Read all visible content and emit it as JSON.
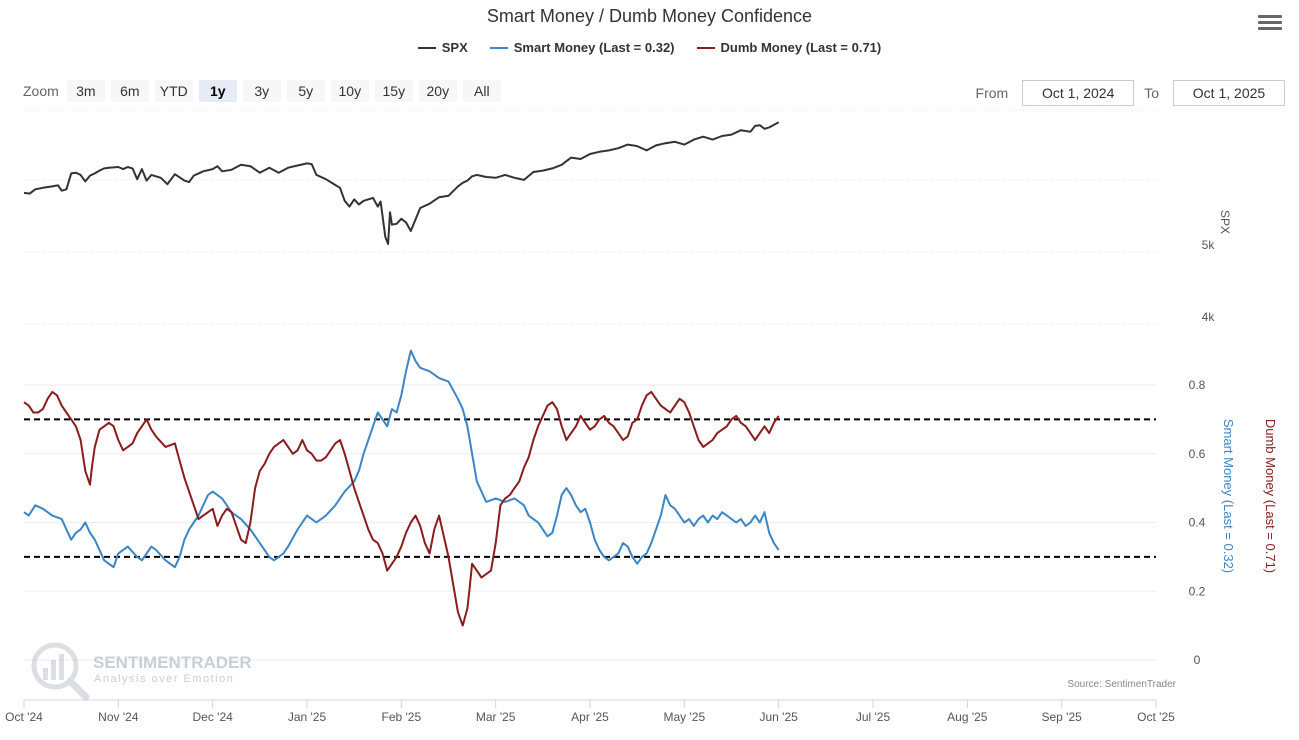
{
  "chart_data": {
    "type": "line",
    "title": "Smart Money / Dumb Money Confidence",
    "legend": {
      "placement": "top-center"
    },
    "series": [
      {
        "name": "SPX",
        "color": "#333333",
        "axis": "spx"
      },
      {
        "name": "Smart Money (Last = 0.32)",
        "color": "#3a86c8",
        "axis": "confidence"
      },
      {
        "name": "Dumb Money (Last = 0.71)",
        "color": "#8b1c1c",
        "axis": "confidence"
      }
    ],
    "x_ticks": [
      "Oct '24",
      "Nov '24",
      "Dec '24",
      "Jan '25",
      "Feb '25",
      "Mar '25",
      "Apr '25",
      "May '25",
      "Jun '25",
      "Jul '25",
      "Aug '25",
      "Sep '25",
      "Oct '25"
    ],
    "spx_axis": {
      "label": "SPX",
      "ticks": [
        "4k",
        "5k"
      ]
    },
    "confidence_axis": {
      "ticks": [
        "0",
        "0.2",
        "0.4",
        "0.6",
        "0.8"
      ],
      "ylim": [
        0,
        0.8
      ],
      "label_smart": "Smart Money (Last = 0.32)",
      "label_dumb": "Dumb Money (Last = 0.71)"
    },
    "reference_lines": [
      0.7,
      0.3
    ],
    "spx_points": [
      [
        0,
        5710
      ],
      [
        0.06,
        5700
      ],
      [
        0.12,
        5760
      ],
      [
        0.2,
        5780
      ],
      [
        0.3,
        5800
      ],
      [
        0.36,
        5815
      ],
      [
        0.4,
        5740
      ],
      [
        0.45,
        5760
      ],
      [
        0.5,
        5980
      ],
      [
        0.55,
        5990
      ],
      [
        0.6,
        5960
      ],
      [
        0.65,
        5870
      ],
      [
        0.7,
        5950
      ],
      [
        0.75,
        5980
      ],
      [
        0.8,
        6020
      ],
      [
        0.85,
        6050
      ],
      [
        0.9,
        6060
      ],
      [
        1.0,
        6070
      ],
      [
        1.05,
        6040
      ],
      [
        1.1,
        6070
      ],
      [
        1.15,
        6050
      ],
      [
        1.2,
        5900
      ],
      [
        1.25,
        6040
      ],
      [
        1.3,
        5880
      ],
      [
        1.35,
        5960
      ],
      [
        1.45,
        5920
      ],
      [
        1.52,
        5830
      ],
      [
        1.6,
        5970
      ],
      [
        1.7,
        5880
      ],
      [
        1.75,
        5860
      ],
      [
        1.8,
        5950
      ],
      [
        1.9,
        6010
      ],
      [
        2.0,
        6040
      ],
      [
        2.05,
        6080
      ],
      [
        2.1,
        6010
      ],
      [
        2.2,
        6030
      ],
      [
        2.3,
        6100
      ],
      [
        2.4,
        6080
      ],
      [
        2.5,
        5990
      ],
      [
        2.6,
        6060
      ],
      [
        2.7,
        5990
      ],
      [
        2.8,
        6060
      ],
      [
        2.9,
        6090
      ],
      [
        3.0,
        6120
      ],
      [
        3.05,
        6110
      ],
      [
        3.1,
        5960
      ],
      [
        3.2,
        5900
      ],
      [
        3.3,
        5820
      ],
      [
        3.35,
        5780
      ],
      [
        3.4,
        5600
      ],
      [
        3.45,
        5520
      ],
      [
        3.5,
        5620
      ],
      [
        3.55,
        5550
      ],
      [
        3.6,
        5600
      ],
      [
        3.7,
        5640
      ],
      [
        3.75,
        5520
      ],
      [
        3.78,
        5590
      ],
      [
        3.83,
        5100
      ],
      [
        3.86,
        5000
      ],
      [
        3.88,
        5440
      ],
      [
        3.9,
        5270
      ],
      [
        3.95,
        5280
      ],
      [
        4.0,
        5350
      ],
      [
        4.05,
        5300
      ],
      [
        4.1,
        5180
      ],
      [
        4.2,
        5500
      ],
      [
        4.3,
        5560
      ],
      [
        4.4,
        5650
      ],
      [
        4.5,
        5670
      ],
      [
        4.6,
        5800
      ],
      [
        4.65,
        5850
      ],
      [
        4.7,
        5880
      ],
      [
        4.75,
        5940
      ],
      [
        4.8,
        5960
      ],
      [
        4.9,
        5930
      ],
      [
        5.0,
        5920
      ],
      [
        5.1,
        5960
      ],
      [
        5.2,
        5920
      ],
      [
        5.3,
        5890
      ],
      [
        5.4,
        6000
      ],
      [
        5.5,
        6020
      ],
      [
        5.6,
        6050
      ],
      [
        5.7,
        6100
      ],
      [
        5.8,
        6200
      ],
      [
        5.9,
        6180
      ],
      [
        6.0,
        6250
      ],
      [
        6.1,
        6280
      ],
      [
        6.2,
        6300
      ],
      [
        6.3,
        6330
      ],
      [
        6.4,
        6380
      ],
      [
        6.5,
        6360
      ],
      [
        6.6,
        6300
      ],
      [
        6.7,
        6370
      ],
      [
        6.8,
        6400
      ],
      [
        6.9,
        6420
      ],
      [
        7.0,
        6380
      ],
      [
        7.1,
        6450
      ],
      [
        7.2,
        6490
      ],
      [
        7.3,
        6450
      ],
      [
        7.4,
        6500
      ],
      [
        7.5,
        6520
      ],
      [
        7.6,
        6580
      ],
      [
        7.7,
        6560
      ],
      [
        7.75,
        6640
      ],
      [
        7.8,
        6650
      ],
      [
        7.85,
        6600
      ],
      [
        7.9,
        6620
      ],
      [
        8.0,
        6690
      ]
    ],
    "smart_points": [
      [
        0,
        0.43
      ],
      [
        0.05,
        0.42
      ],
      [
        0.12,
        0.45
      ],
      [
        0.2,
        0.44
      ],
      [
        0.3,
        0.42
      ],
      [
        0.4,
        0.41
      ],
      [
        0.45,
        0.38
      ],
      [
        0.5,
        0.35
      ],
      [
        0.55,
        0.37
      ],
      [
        0.6,
        0.38
      ],
      [
        0.65,
        0.4
      ],
      [
        0.7,
        0.37
      ],
      [
        0.75,
        0.35
      ],
      [
        0.8,
        0.32
      ],
      [
        0.85,
        0.29
      ],
      [
        0.9,
        0.28
      ],
      [
        0.95,
        0.27
      ],
      [
        1.0,
        0.31
      ],
      [
        1.05,
        0.32
      ],
      [
        1.1,
        0.33
      ],
      [
        1.2,
        0.3
      ],
      [
        1.25,
        0.29
      ],
      [
        1.3,
        0.31
      ],
      [
        1.35,
        0.33
      ],
      [
        1.4,
        0.32
      ],
      [
        1.5,
        0.29
      ],
      [
        1.6,
        0.27
      ],
      [
        1.65,
        0.3
      ],
      [
        1.7,
        0.35
      ],
      [
        1.75,
        0.38
      ],
      [
        1.8,
        0.4
      ],
      [
        1.85,
        0.42
      ],
      [
        1.9,
        0.45
      ],
      [
        1.95,
        0.48
      ],
      [
        2.0,
        0.49
      ],
      [
        2.1,
        0.47
      ],
      [
        2.2,
        0.43
      ],
      [
        2.3,
        0.41
      ],
      [
        2.4,
        0.38
      ],
      [
        2.5,
        0.34
      ],
      [
        2.6,
        0.3
      ],
      [
        2.65,
        0.29
      ],
      [
        2.7,
        0.3
      ],
      [
        2.75,
        0.31
      ],
      [
        2.8,
        0.33
      ],
      [
        2.9,
        0.38
      ],
      [
        3.0,
        0.42
      ],
      [
        3.1,
        0.4
      ],
      [
        3.2,
        0.42
      ],
      [
        3.3,
        0.45
      ],
      [
        3.4,
        0.49
      ],
      [
        3.5,
        0.52
      ],
      [
        3.55,
        0.55
      ],
      [
        3.6,
        0.6
      ],
      [
        3.7,
        0.68
      ],
      [
        3.75,
        0.72
      ],
      [
        3.8,
        0.7
      ],
      [
        3.85,
        0.68
      ],
      [
        3.9,
        0.73
      ],
      [
        3.95,
        0.72
      ],
      [
        4.0,
        0.77
      ],
      [
        4.05,
        0.84
      ],
      [
        4.1,
        0.9
      ],
      [
        4.15,
        0.87
      ],
      [
        4.2,
        0.85
      ],
      [
        4.3,
        0.84
      ],
      [
        4.4,
        0.82
      ],
      [
        4.5,
        0.81
      ],
      [
        4.6,
        0.76
      ],
      [
        4.65,
        0.73
      ],
      [
        4.7,
        0.68
      ],
      [
        4.75,
        0.6
      ],
      [
        4.8,
        0.52
      ],
      [
        4.85,
        0.49
      ],
      [
        4.9,
        0.46
      ],
      [
        5.0,
        0.47
      ],
      [
        5.1,
        0.46
      ],
      [
        5.2,
        0.47
      ],
      [
        5.3,
        0.45
      ],
      [
        5.35,
        0.42
      ],
      [
        5.4,
        0.41
      ],
      [
        5.45,
        0.4
      ],
      [
        5.5,
        0.38
      ],
      [
        5.55,
        0.36
      ],
      [
        5.6,
        0.37
      ],
      [
        5.65,
        0.42
      ],
      [
        5.7,
        0.48
      ],
      [
        5.75,
        0.5
      ],
      [
        5.8,
        0.48
      ],
      [
        5.85,
        0.45
      ],
      [
        5.9,
        0.43
      ],
      [
        5.95,
        0.44
      ],
      [
        6.0,
        0.4
      ],
      [
        6.05,
        0.35
      ],
      [
        6.1,
        0.32
      ],
      [
        6.15,
        0.3
      ],
      [
        6.2,
        0.29
      ],
      [
        6.25,
        0.3
      ],
      [
        6.3,
        0.31
      ],
      [
        6.35,
        0.34
      ],
      [
        6.4,
        0.33
      ],
      [
        6.45,
        0.3
      ],
      [
        6.5,
        0.28
      ],
      [
        6.55,
        0.3
      ],
      [
        6.6,
        0.31
      ],
      [
        6.65,
        0.34
      ],
      [
        6.7,
        0.38
      ],
      [
        6.75,
        0.42
      ],
      [
        6.8,
        0.48
      ],
      [
        6.85,
        0.45
      ],
      [
        6.9,
        0.44
      ],
      [
        6.95,
        0.42
      ],
      [
        7.0,
        0.4
      ],
      [
        7.05,
        0.41
      ],
      [
        7.1,
        0.39
      ],
      [
        7.15,
        0.41
      ],
      [
        7.2,
        0.42
      ],
      [
        7.25,
        0.4
      ],
      [
        7.3,
        0.42
      ],
      [
        7.35,
        0.41
      ],
      [
        7.4,
        0.43
      ],
      [
        7.45,
        0.42
      ],
      [
        7.5,
        0.41
      ],
      [
        7.55,
        0.4
      ],
      [
        7.6,
        0.41
      ],
      [
        7.65,
        0.39
      ],
      [
        7.7,
        0.4
      ],
      [
        7.75,
        0.42
      ],
      [
        7.8,
        0.4
      ],
      [
        7.85,
        0.43
      ],
      [
        7.9,
        0.37
      ],
      [
        7.95,
        0.34
      ],
      [
        8.0,
        0.32
      ]
    ],
    "dumb_points": [
      [
        0,
        0.75
      ],
      [
        0.05,
        0.74
      ],
      [
        0.1,
        0.72
      ],
      [
        0.15,
        0.72
      ],
      [
        0.2,
        0.73
      ],
      [
        0.25,
        0.76
      ],
      [
        0.3,
        0.78
      ],
      [
        0.35,
        0.77
      ],
      [
        0.4,
        0.74
      ],
      [
        0.45,
        0.72
      ],
      [
        0.5,
        0.7
      ],
      [
        0.55,
        0.68
      ],
      [
        0.6,
        0.64
      ],
      [
        0.65,
        0.55
      ],
      [
        0.7,
        0.51
      ],
      [
        0.72,
        0.56
      ],
      [
        0.75,
        0.62
      ],
      [
        0.8,
        0.67
      ],
      [
        0.85,
        0.68
      ],
      [
        0.9,
        0.69
      ],
      [
        0.95,
        0.68
      ],
      [
        1.0,
        0.64
      ],
      [
        1.05,
        0.61
      ],
      [
        1.1,
        0.62
      ],
      [
        1.15,
        0.63
      ],
      [
        1.2,
        0.66
      ],
      [
        1.25,
        0.68
      ],
      [
        1.3,
        0.7
      ],
      [
        1.35,
        0.67
      ],
      [
        1.4,
        0.65
      ],
      [
        1.5,
        0.62
      ],
      [
        1.6,
        0.63
      ],
      [
        1.65,
        0.58
      ],
      [
        1.7,
        0.53
      ],
      [
        1.75,
        0.49
      ],
      [
        1.8,
        0.45
      ],
      [
        1.85,
        0.41
      ],
      [
        1.9,
        0.42
      ],
      [
        1.95,
        0.43
      ],
      [
        2.0,
        0.44
      ],
      [
        2.05,
        0.39
      ],
      [
        2.1,
        0.42
      ],
      [
        2.15,
        0.44
      ],
      [
        2.2,
        0.43
      ],
      [
        2.25,
        0.39
      ],
      [
        2.3,
        0.35
      ],
      [
        2.35,
        0.34
      ],
      [
        2.4,
        0.4
      ],
      [
        2.45,
        0.5
      ],
      [
        2.5,
        0.55
      ],
      [
        2.55,
        0.57
      ],
      [
        2.6,
        0.6
      ],
      [
        2.65,
        0.62
      ],
      [
        2.7,
        0.63
      ],
      [
        2.75,
        0.64
      ],
      [
        2.8,
        0.62
      ],
      [
        2.85,
        0.6
      ],
      [
        2.9,
        0.61
      ],
      [
        2.95,
        0.64
      ],
      [
        3.0,
        0.61
      ],
      [
        3.05,
        0.6
      ],
      [
        3.1,
        0.58
      ],
      [
        3.15,
        0.58
      ],
      [
        3.2,
        0.59
      ],
      [
        3.25,
        0.61
      ],
      [
        3.3,
        0.63
      ],
      [
        3.35,
        0.64
      ],
      [
        3.4,
        0.6
      ],
      [
        3.45,
        0.55
      ],
      [
        3.5,
        0.5
      ],
      [
        3.55,
        0.46
      ],
      [
        3.6,
        0.42
      ],
      [
        3.65,
        0.38
      ],
      [
        3.7,
        0.35
      ],
      [
        3.75,
        0.34
      ],
      [
        3.8,
        0.31
      ],
      [
        3.85,
        0.26
      ],
      [
        3.9,
        0.28
      ],
      [
        3.95,
        0.3
      ],
      [
        4.0,
        0.33
      ],
      [
        4.05,
        0.37
      ],
      [
        4.1,
        0.4
      ],
      [
        4.15,
        0.42
      ],
      [
        4.2,
        0.39
      ],
      [
        4.25,
        0.34
      ],
      [
        4.3,
        0.31
      ],
      [
        4.35,
        0.38
      ],
      [
        4.4,
        0.42
      ],
      [
        4.45,
        0.36
      ],
      [
        4.5,
        0.3
      ],
      [
        4.55,
        0.22
      ],
      [
        4.6,
        0.14
      ],
      [
        4.65,
        0.1
      ],
      [
        4.7,
        0.15
      ],
      [
        4.72,
        0.2
      ],
      [
        4.75,
        0.28
      ],
      [
        4.8,
        0.26
      ],
      [
        4.85,
        0.24
      ],
      [
        4.9,
        0.25
      ],
      [
        4.95,
        0.26
      ],
      [
        5.0,
        0.34
      ],
      [
        5.05,
        0.45
      ],
      [
        5.1,
        0.47
      ],
      [
        5.15,
        0.48
      ],
      [
        5.2,
        0.5
      ],
      [
        5.25,
        0.52
      ],
      [
        5.3,
        0.56
      ],
      [
        5.35,
        0.59
      ],
      [
        5.4,
        0.64
      ],
      [
        5.45,
        0.68
      ],
      [
        5.5,
        0.71
      ],
      [
        5.55,
        0.74
      ],
      [
        5.6,
        0.75
      ],
      [
        5.65,
        0.73
      ],
      [
        5.7,
        0.68
      ],
      [
        5.75,
        0.64
      ],
      [
        5.8,
        0.66
      ],
      [
        5.85,
        0.68
      ],
      [
        5.9,
        0.71
      ],
      [
        5.95,
        0.69
      ],
      [
        6.0,
        0.67
      ],
      [
        6.05,
        0.68
      ],
      [
        6.1,
        0.7
      ],
      [
        6.15,
        0.71
      ],
      [
        6.2,
        0.69
      ],
      [
        6.25,
        0.68
      ],
      [
        6.3,
        0.66
      ],
      [
        6.35,
        0.64
      ],
      [
        6.4,
        0.65
      ],
      [
        6.45,
        0.69
      ],
      [
        6.5,
        0.7
      ],
      [
        6.55,
        0.74
      ],
      [
        6.6,
        0.77
      ],
      [
        6.65,
        0.78
      ],
      [
        6.7,
        0.76
      ],
      [
        6.75,
        0.74
      ],
      [
        6.8,
        0.73
      ],
      [
        6.85,
        0.72
      ],
      [
        6.9,
        0.74
      ],
      [
        6.95,
        0.76
      ],
      [
        7.0,
        0.75
      ],
      [
        7.05,
        0.72
      ],
      [
        7.1,
        0.68
      ],
      [
        7.15,
        0.64
      ],
      [
        7.2,
        0.62
      ],
      [
        7.25,
        0.63
      ],
      [
        7.3,
        0.64
      ],
      [
        7.35,
        0.66
      ],
      [
        7.4,
        0.67
      ],
      [
        7.45,
        0.68
      ],
      [
        7.5,
        0.7
      ],
      [
        7.55,
        0.71
      ],
      [
        7.6,
        0.69
      ],
      [
        7.65,
        0.68
      ],
      [
        7.7,
        0.66
      ],
      [
        7.75,
        0.64
      ],
      [
        7.8,
        0.66
      ],
      [
        7.85,
        0.68
      ],
      [
        7.9,
        0.66
      ],
      [
        7.95,
        0.69
      ],
      [
        8.0,
        0.71
      ]
    ],
    "grid": true,
    "source": "Source: SentimenTrader",
    "watermark": {
      "name": "SENTIMENTRADER",
      "tagline": "Analysis over Emotion"
    }
  },
  "controls": {
    "zoom_label": "Zoom",
    "zoom_buttons": [
      "3m",
      "6m",
      "YTD",
      "1y",
      "3y",
      "5y",
      "10y",
      "15y",
      "20y",
      "All"
    ],
    "zoom_active": "1y",
    "from_label": "From",
    "from_value": "Oct 1, 2024",
    "to_label": "To",
    "to_value": "Oct 1, 2025"
  },
  "icons": {
    "menu": "hamburger-menu-icon",
    "logo": "magnifier-chart-icon"
  }
}
